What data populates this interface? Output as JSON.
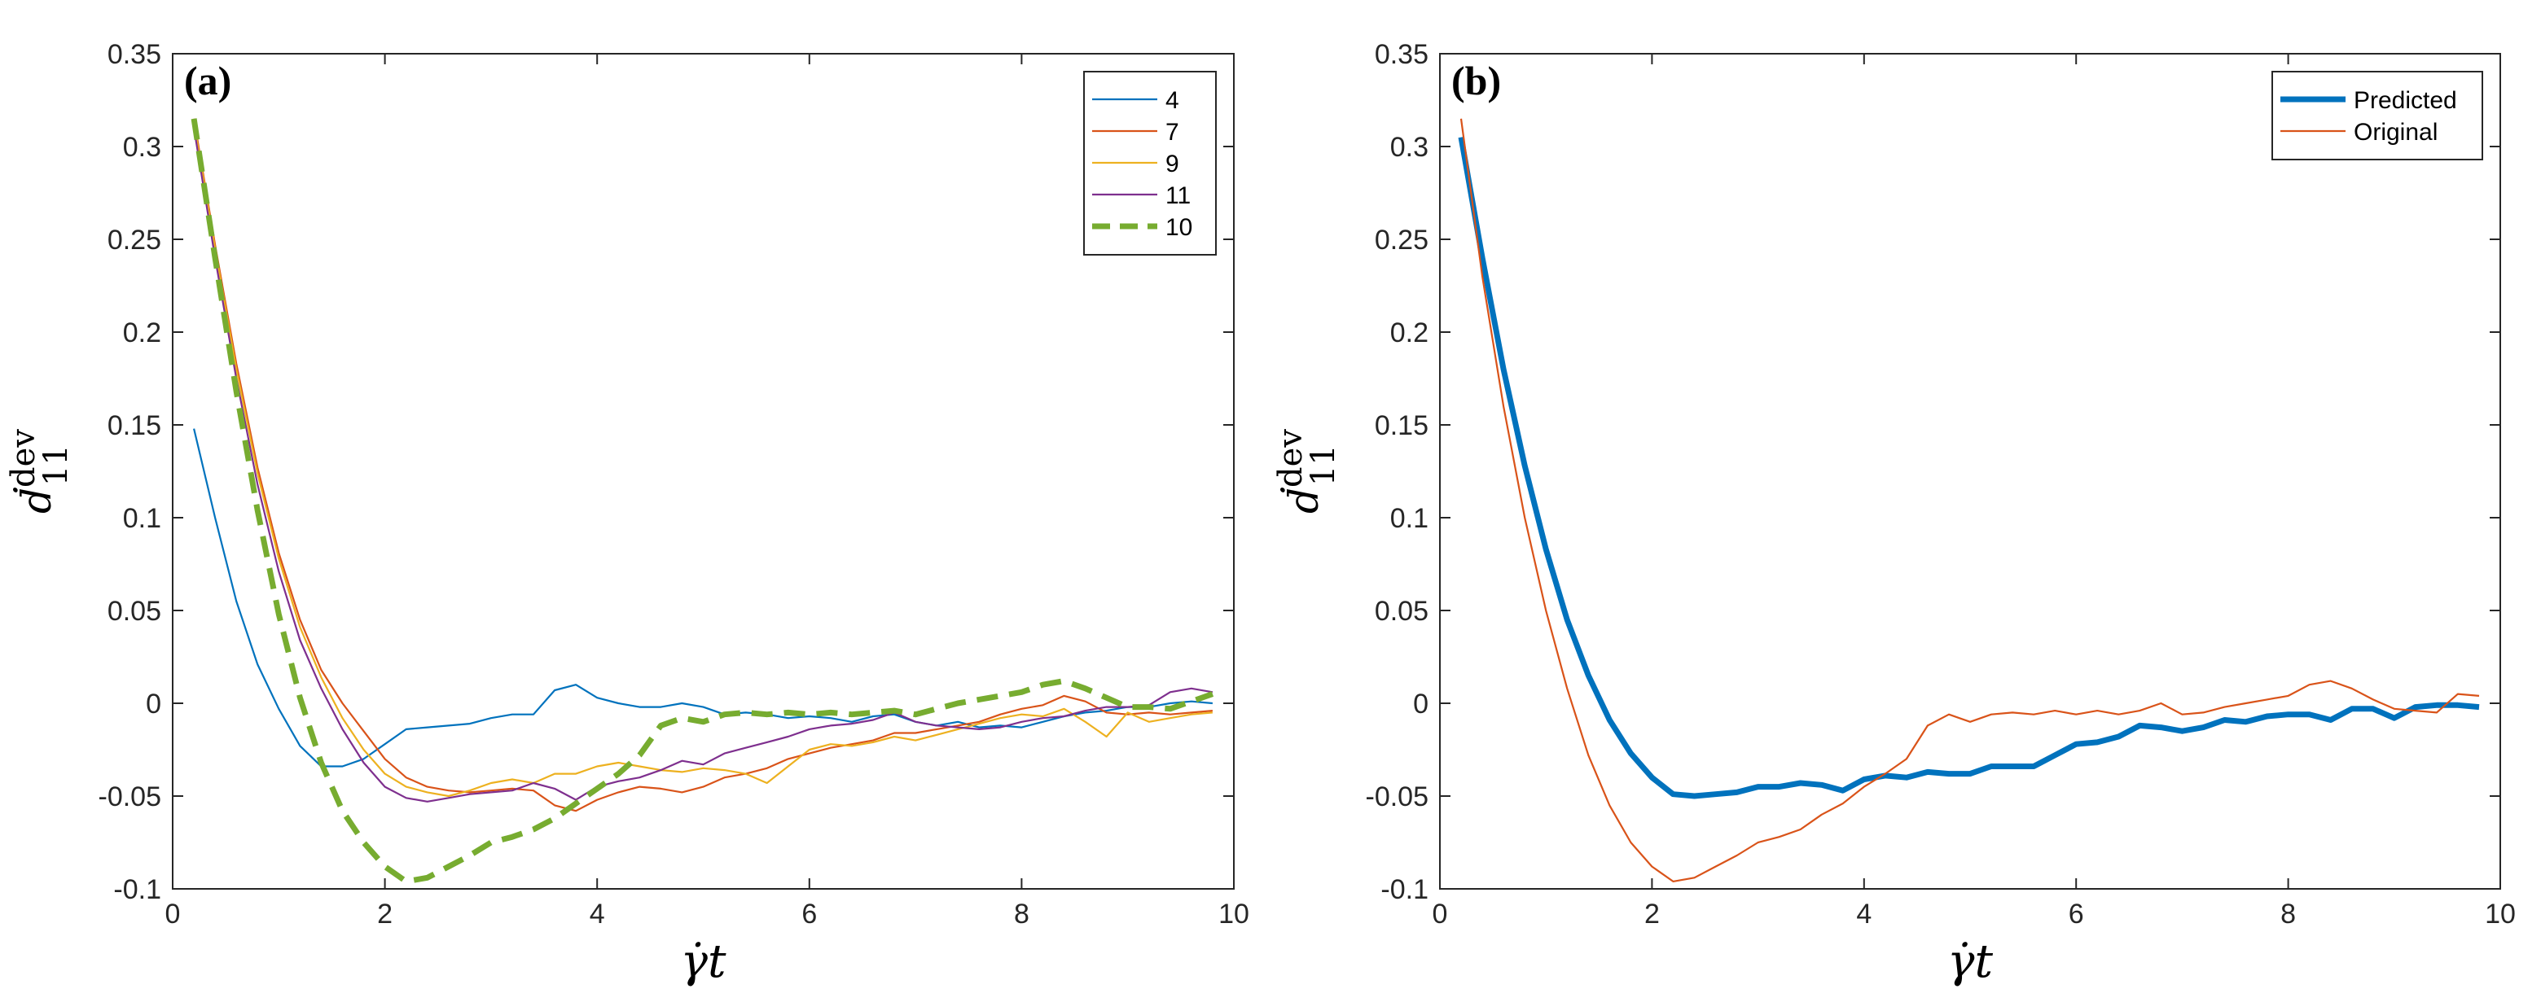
{
  "chart_data": [
    {
      "type": "line",
      "panel_label": "(a)",
      "xlabel_main": "γ̇t",
      "ylabel_main": "ḋ",
      "ylabel_sup": "dev",
      "ylabel_sub": "11",
      "xlim": [
        0,
        10
      ],
      "ylim": [
        -0.1,
        0.35
      ],
      "xticks": [
        0,
        2,
        4,
        6,
        8,
        10
      ],
      "yticks": [
        -0.1,
        -0.05,
        0,
        0.05,
        0.1,
        0.15,
        0.2,
        0.25,
        0.3,
        0.35
      ],
      "xtick_labels": [
        "0",
        "2",
        "4",
        "6",
        "8",
        "10"
      ],
      "ytick_labels": [
        "-0.1",
        "-0.05",
        "0",
        "0.05",
        "0.1",
        "0.15",
        "0.2",
        "0.25",
        "0.3",
        "0.35"
      ],
      "legend_position": "top-right",
      "series": [
        {
          "name": "4",
          "color": "#0072BD",
          "style": "solid",
          "weight": "thin",
          "x": [
            0.2,
            0.4,
            0.6,
            0.8,
            1.0,
            1.2,
            1.4,
            1.6,
            1.8,
            2.0,
            2.2,
            2.4,
            2.6,
            2.8,
            3.0,
            3.2,
            3.4,
            3.6,
            3.8,
            4.0,
            4.2,
            4.4,
            4.6,
            4.8,
            5.0,
            5.2,
            5.4,
            5.6,
            5.8,
            6.0,
            6.2,
            6.4,
            6.6,
            6.8,
            7.0,
            7.2,
            7.4,
            7.6,
            7.8,
            8.0,
            8.2,
            8.4,
            8.6,
            8.8,
            9.0,
            9.2,
            9.4,
            9.6,
            9.8
          ],
          "y": [
            0.148,
            0.1,
            0.055,
            0.021,
            -0.003,
            -0.023,
            -0.034,
            -0.034,
            -0.03,
            -0.022,
            -0.014,
            -0.013,
            -0.012,
            -0.011,
            -0.008,
            -0.006,
            -0.006,
            0.007,
            0.01,
            0.003,
            0.0,
            -0.002,
            -0.002,
            0.0,
            -0.002,
            -0.006,
            -0.005,
            -0.006,
            -0.008,
            -0.007,
            -0.008,
            -0.01,
            -0.007,
            -0.006,
            -0.01,
            -0.012,
            -0.01,
            -0.013,
            -0.012,
            -0.013,
            -0.01,
            -0.007,
            -0.005,
            -0.004,
            -0.002,
            -0.002,
            0.0,
            0.001,
            0.0
          ]
        },
        {
          "name": "7",
          "color": "#D95319",
          "style": "solid",
          "weight": "thin",
          "x": [
            0.2,
            0.4,
            0.6,
            0.8,
            1.0,
            1.2,
            1.4,
            1.6,
            1.8,
            2.0,
            2.2,
            2.4,
            2.6,
            2.8,
            3.0,
            3.2,
            3.4,
            3.6,
            3.8,
            4.0,
            4.2,
            4.4,
            4.6,
            4.8,
            5.0,
            5.2,
            5.4,
            5.6,
            5.8,
            6.0,
            6.2,
            6.4,
            6.6,
            6.8,
            7.0,
            7.2,
            7.4,
            7.6,
            7.8,
            8.0,
            8.2,
            8.4,
            8.6,
            8.8,
            9.0,
            9.2,
            9.4,
            9.6,
            9.8
          ],
          "y": [
            0.315,
            0.247,
            0.183,
            0.127,
            0.081,
            0.045,
            0.018,
            0.0,
            -0.015,
            -0.03,
            -0.04,
            -0.045,
            -0.047,
            -0.048,
            -0.047,
            -0.046,
            -0.047,
            -0.055,
            -0.058,
            -0.052,
            -0.048,
            -0.045,
            -0.046,
            -0.048,
            -0.045,
            -0.04,
            -0.038,
            -0.035,
            -0.03,
            -0.027,
            -0.024,
            -0.022,
            -0.02,
            -0.016,
            -0.016,
            -0.014,
            -0.012,
            -0.01,
            -0.006,
            -0.003,
            -0.001,
            0.004,
            0.001,
            -0.005,
            -0.006,
            -0.005,
            -0.006,
            -0.005,
            -0.004
          ]
        },
        {
          "name": "9",
          "color": "#EDB120",
          "style": "solid",
          "weight": "thin",
          "x": [
            0.2,
            0.4,
            0.6,
            0.8,
            1.0,
            1.2,
            1.4,
            1.6,
            1.8,
            2.0,
            2.2,
            2.4,
            2.6,
            2.8,
            3.0,
            3.2,
            3.4,
            3.6,
            3.8,
            4.0,
            4.2,
            4.4,
            4.6,
            4.8,
            5.0,
            5.2,
            5.4,
            5.6,
            5.8,
            6.0,
            6.2,
            6.4,
            6.6,
            6.8,
            7.0,
            7.2,
            7.4,
            7.6,
            7.8,
            8.0,
            8.2,
            8.4,
            8.6,
            8.8,
            9.0,
            9.2,
            9.4,
            9.6,
            9.8
          ],
          "y": [
            0.313,
            0.245,
            0.18,
            0.124,
            0.078,
            0.041,
            0.014,
            -0.008,
            -0.025,
            -0.038,
            -0.045,
            -0.048,
            -0.05,
            -0.047,
            -0.043,
            -0.041,
            -0.043,
            -0.038,
            -0.038,
            -0.034,
            -0.032,
            -0.034,
            -0.036,
            -0.037,
            -0.035,
            -0.036,
            -0.038,
            -0.043,
            -0.034,
            -0.025,
            -0.022,
            -0.023,
            -0.021,
            -0.018,
            -0.02,
            -0.017,
            -0.014,
            -0.011,
            -0.008,
            -0.006,
            -0.007,
            -0.003,
            -0.01,
            -0.018,
            -0.005,
            -0.01,
            -0.008,
            -0.006,
            -0.005
          ]
        },
        {
          "name": "11",
          "color": "#7E2F8E",
          "style": "solid",
          "weight": "thin",
          "x": [
            0.2,
            0.4,
            0.6,
            0.8,
            1.0,
            1.2,
            1.4,
            1.6,
            1.8,
            2.0,
            2.2,
            2.4,
            2.6,
            2.8,
            3.0,
            3.2,
            3.4,
            3.6,
            3.8,
            4.0,
            4.2,
            4.4,
            4.6,
            4.8,
            5.0,
            5.2,
            5.4,
            5.6,
            5.8,
            6.0,
            6.2,
            6.4,
            6.6,
            6.8,
            7.0,
            7.2,
            7.4,
            7.6,
            7.8,
            8.0,
            8.2,
            8.4,
            8.6,
            8.8,
            9.0,
            9.2,
            9.4,
            9.6,
            9.8
          ],
          "y": [
            0.31,
            0.24,
            0.175,
            0.118,
            0.071,
            0.034,
            0.008,
            -0.014,
            -0.032,
            -0.045,
            -0.051,
            -0.053,
            -0.051,
            -0.049,
            -0.048,
            -0.047,
            -0.043,
            -0.046,
            -0.052,
            -0.045,
            -0.042,
            -0.04,
            -0.036,
            -0.031,
            -0.033,
            -0.027,
            -0.024,
            -0.021,
            -0.018,
            -0.014,
            -0.012,
            -0.011,
            -0.009,
            -0.005,
            -0.01,
            -0.012,
            -0.013,
            -0.014,
            -0.013,
            -0.01,
            -0.008,
            -0.007,
            -0.004,
            -0.002,
            -0.002,
            -0.001,
            0.006,
            0.008,
            0.006
          ]
        },
        {
          "name": "10",
          "color": "#77AC30",
          "style": "dashed",
          "weight": "thick",
          "x": [
            0.2,
            0.4,
            0.6,
            0.8,
            1.0,
            1.2,
            1.4,
            1.6,
            1.8,
            2.0,
            2.2,
            2.4,
            2.6,
            2.8,
            3.0,
            3.2,
            3.4,
            3.6,
            3.8,
            4.0,
            4.2,
            4.4,
            4.6,
            4.8,
            5.0,
            5.2,
            5.4,
            5.6,
            5.8,
            6.0,
            6.2,
            6.4,
            6.6,
            6.8,
            7.0,
            7.2,
            7.4,
            7.6,
            7.8,
            8.0,
            8.2,
            8.4,
            8.6,
            8.8,
            9.0,
            9.2,
            9.4,
            9.6,
            9.8
          ],
          "y": [
            0.315,
            0.24,
            0.168,
            0.104,
            0.048,
            0.003,
            -0.032,
            -0.058,
            -0.075,
            -0.088,
            -0.096,
            -0.094,
            -0.088,
            -0.082,
            -0.075,
            -0.072,
            -0.068,
            -0.062,
            -0.054,
            -0.046,
            -0.038,
            -0.028,
            -0.012,
            -0.008,
            -0.01,
            -0.006,
            -0.005,
            -0.006,
            -0.005,
            -0.006,
            -0.005,
            -0.006,
            -0.005,
            -0.004,
            -0.006,
            -0.003,
            0.0,
            0.002,
            0.004,
            0.006,
            0.01,
            0.012,
            0.008,
            0.003,
            -0.002,
            -0.002,
            -0.003,
            0.001,
            0.005
          ]
        }
      ]
    },
    {
      "type": "line",
      "panel_label": "(b)",
      "xlabel_main": "γ̇t",
      "ylabel_main": "ḋ",
      "ylabel_sup": "dev",
      "ylabel_sub": "11",
      "xlim": [
        0,
        10
      ],
      "ylim": [
        -0.1,
        0.35
      ],
      "xticks": [
        0,
        2,
        4,
        6,
        8,
        10
      ],
      "yticks": [
        -0.1,
        -0.05,
        0,
        0.05,
        0.1,
        0.15,
        0.2,
        0.25,
        0.3,
        0.35
      ],
      "xtick_labels": [
        "0",
        "2",
        "4",
        "6",
        "8",
        "10"
      ],
      "ytick_labels": [
        "-0.1",
        "-0.05",
        "0",
        "0.05",
        "0.1",
        "0.15",
        "0.2",
        "0.25",
        "0.3",
        "0.35"
      ],
      "legend_position": "top-right",
      "series": [
        {
          "name": "Predicted",
          "color": "#0072BD",
          "style": "solid",
          "weight": "thick",
          "x": [
            0.2,
            0.4,
            0.6,
            0.8,
            1.0,
            1.2,
            1.4,
            1.6,
            1.8,
            2.0,
            2.2,
            2.4,
            2.6,
            2.8,
            3.0,
            3.2,
            3.4,
            3.6,
            3.8,
            4.0,
            4.2,
            4.4,
            4.6,
            4.8,
            5.0,
            5.2,
            5.4,
            5.6,
            5.8,
            6.0,
            6.2,
            6.4,
            6.6,
            6.8,
            7.0,
            7.2,
            7.4,
            7.6,
            7.8,
            8.0,
            8.2,
            8.4,
            8.6,
            8.8,
            9.0,
            9.2,
            9.4,
            9.6,
            9.8
          ],
          "y": [
            0.305,
            0.24,
            0.18,
            0.128,
            0.083,
            0.045,
            0.015,
            -0.009,
            -0.027,
            -0.04,
            -0.049,
            -0.05,
            -0.049,
            -0.048,
            -0.045,
            -0.045,
            -0.043,
            -0.044,
            -0.047,
            -0.041,
            -0.039,
            -0.04,
            -0.037,
            -0.038,
            -0.038,
            -0.034,
            -0.034,
            -0.034,
            -0.028,
            -0.022,
            -0.021,
            -0.018,
            -0.012,
            -0.013,
            -0.015,
            -0.013,
            -0.009,
            -0.01,
            -0.007,
            -0.006,
            -0.006,
            -0.009,
            -0.003,
            -0.003,
            -0.008,
            -0.002,
            -0.001,
            -0.001,
            -0.002
          ]
        },
        {
          "name": "Original",
          "color": "#D95319",
          "style": "solid",
          "weight": "thin",
          "x": [
            0.2,
            0.4,
            0.6,
            0.8,
            1.0,
            1.2,
            1.4,
            1.6,
            1.8,
            2.0,
            2.2,
            2.4,
            2.6,
            2.8,
            3.0,
            3.2,
            3.4,
            3.6,
            3.8,
            4.0,
            4.2,
            4.4,
            4.6,
            4.8,
            5.0,
            5.2,
            5.4,
            5.6,
            5.8,
            6.0,
            6.2,
            6.4,
            6.6,
            6.8,
            7.0,
            7.2,
            7.4,
            7.6,
            7.8,
            8.0,
            8.2,
            8.4,
            8.6,
            8.8,
            9.0,
            9.2,
            9.4,
            9.6,
            9.8
          ],
          "y": [
            0.315,
            0.23,
            0.16,
            0.1,
            0.05,
            0.008,
            -0.028,
            -0.055,
            -0.075,
            -0.088,
            -0.096,
            -0.094,
            -0.088,
            -0.082,
            -0.075,
            -0.072,
            -0.068,
            -0.06,
            -0.054,
            -0.045,
            -0.038,
            -0.03,
            -0.012,
            -0.006,
            -0.01,
            -0.006,
            -0.005,
            -0.006,
            -0.004,
            -0.006,
            -0.004,
            -0.006,
            -0.004,
            0.0,
            -0.006,
            -0.005,
            -0.002,
            0.0,
            0.002,
            0.004,
            0.01,
            0.012,
            0.008,
            0.002,
            -0.003,
            -0.004,
            -0.005,
            0.005,
            0.004
          ]
        }
      ]
    }
  ]
}
